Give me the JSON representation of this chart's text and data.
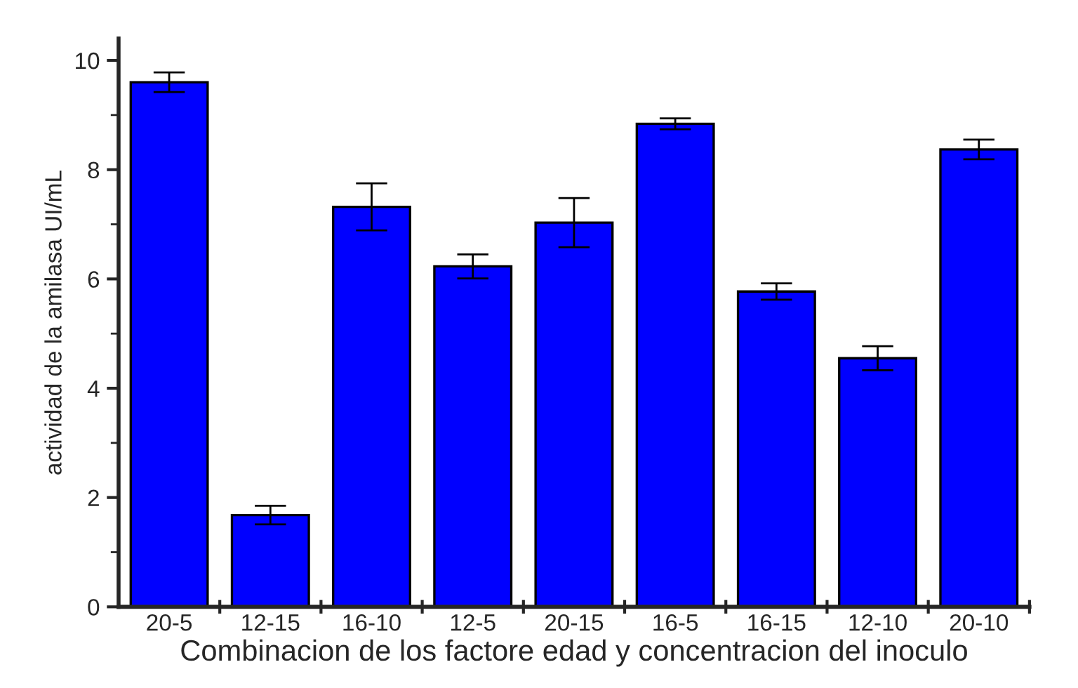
{
  "chart_data": {
    "type": "bar",
    "xlabel": "Combinacion de los factore edad y concentracion del inoculo",
    "ylabel": "actividad de la amilasa UI/mL",
    "categories": [
      "20-5",
      "12-15",
      "16-10",
      "12-5",
      "20-15",
      "16-5",
      "16-15",
      "12-10",
      "20-10"
    ],
    "values": [
      9.6,
      1.68,
      7.32,
      6.23,
      7.03,
      8.84,
      5.77,
      4.55,
      8.37
    ],
    "errors": [
      0.18,
      0.17,
      0.43,
      0.22,
      0.45,
      0.1,
      0.15,
      0.22,
      0.18
    ],
    "color": "#0000ff",
    "ylim": [
      0,
      10.4
    ],
    "yticks": [
      0,
      {
        "value": 1,
        "label": null
      },
      2,
      {
        "value": 3,
        "label": null
      },
      4,
      {
        "value": 5,
        "label": null
      },
      6,
      {
        "value": 7,
        "label": null
      },
      8,
      {
        "value": 9,
        "label": null
      },
      10
    ],
    "grid": false,
    "legend": false
  }
}
